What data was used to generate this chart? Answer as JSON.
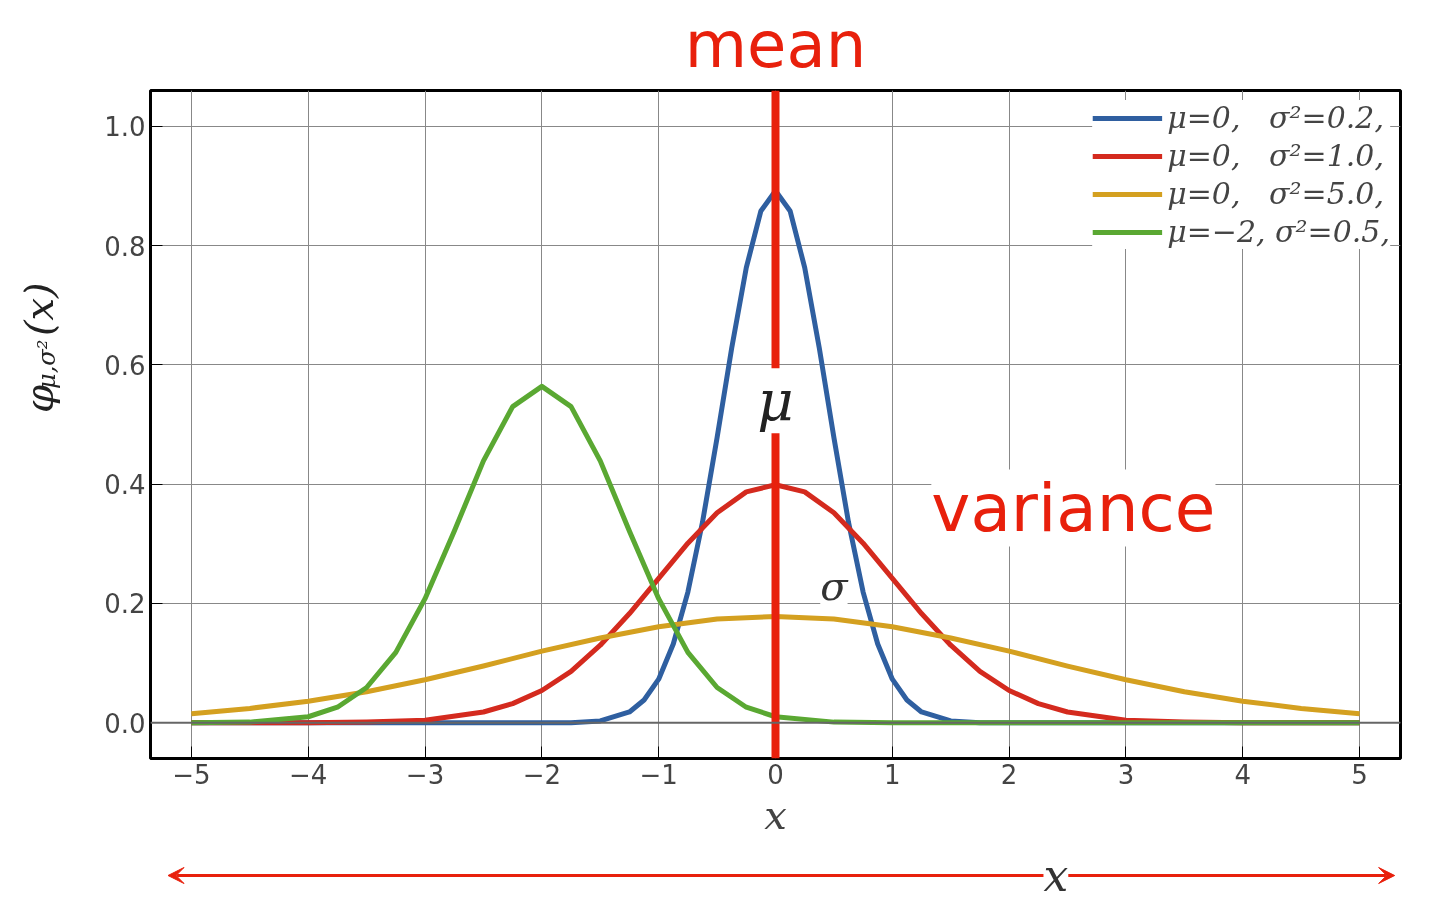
{
  "chart_data": {
    "type": "line",
    "xlabel": "x",
    "ylabel": "φ$_{μ,σ²}$(x)",
    "xlim": [
      -5.35,
      5.35
    ],
    "ylim": [
      -0.06,
      1.06
    ],
    "xticks": [
      {
        "value": -5,
        "label": "−5"
      },
      {
        "value": -4,
        "label": "−4"
      },
      {
        "value": -3,
        "label": "−3"
      },
      {
        "value": -2,
        "label": "−2"
      },
      {
        "value": -1,
        "label": "−1"
      },
      0,
      1,
      2,
      3,
      4,
      5
    ],
    "yticks": [
      {
        "value": 0,
        "label": "0.0"
      },
      0.2,
      0.4,
      0.6,
      0.8,
      {
        "value": 1,
        "label": "1.0"
      }
    ],
    "grid": true,
    "legend": "top right",
    "line_style": "solid",
    "series": [
      {
        "name": "μ=0,   σ²=0.2,",
        "color": "#2f5fa0",
        "x": [
          -5,
          -2,
          -1.75,
          -1.5,
          -1.25,
          -1.125,
          -1,
          -0.875,
          -0.75,
          -0.625,
          -0.5,
          -0.375,
          -0.25,
          -0.125,
          0,
          0.125,
          0.25,
          0.375,
          0.5,
          0.625,
          0.75,
          0.875,
          1,
          1.125,
          1.25,
          1.5,
          1.75,
          2,
          5
        ],
        "values": [
          0,
          0,
          0,
          0.003,
          0.018,
          0.038,
          0.073,
          0.132,
          0.219,
          0.336,
          0.478,
          0.628,
          0.763,
          0.858,
          0.892,
          0.858,
          0.763,
          0.628,
          0.478,
          0.336,
          0.219,
          0.132,
          0.073,
          0.038,
          0.018,
          0.003,
          0,
          0,
          0
        ]
      },
      {
        "name": "μ=0,   σ²=1.0,",
        "color": "#d42a1e",
        "x": [
          -5,
          -4,
          -3.5,
          -3,
          -2.5,
          -2.25,
          -2,
          -1.75,
          -1.5,
          -1.25,
          -1,
          -0.75,
          -0.5,
          -0.25,
          0,
          0.25,
          0.5,
          0.75,
          1,
          1.25,
          1.5,
          1.75,
          2,
          2.25,
          2.5,
          3,
          3.5,
          4,
          5
        ],
        "values": [
          0,
          0,
          0.001,
          0.004,
          0.018,
          0.032,
          0.054,
          0.086,
          0.13,
          0.183,
          0.242,
          0.301,
          0.352,
          0.387,
          0.399,
          0.387,
          0.352,
          0.301,
          0.242,
          0.183,
          0.13,
          0.086,
          0.054,
          0.032,
          0.018,
          0.004,
          0.001,
          0,
          0
        ]
      },
      {
        "name": "μ=0,   σ²=5.0,",
        "color": "#d4a020",
        "x": [
          -5,
          -4.5,
          -4,
          -3.5,
          -3,
          -2.5,
          -2,
          -1.5,
          -1,
          -0.5,
          0,
          0.5,
          1,
          1.5,
          2,
          2.5,
          3,
          3.5,
          4,
          4.5,
          5
        ],
        "values": [
          0.015,
          0.024,
          0.036,
          0.052,
          0.072,
          0.095,
          0.12,
          0.142,
          0.161,
          0.174,
          0.178,
          0.174,
          0.161,
          0.142,
          0.12,
          0.095,
          0.072,
          0.052,
          0.036,
          0.024,
          0.015
        ]
      },
      {
        "name": "μ=−2, σ²=0.5,",
        "color": "#5aa832",
        "x": [
          -5,
          -4.5,
          -4,
          -3.75,
          -3.5,
          -3.25,
          -3,
          -2.75,
          -2.5,
          -2.25,
          -2,
          -1.75,
          -1.5,
          -1.25,
          -1,
          -0.75,
          -0.5,
          -0.25,
          0,
          0.5,
          1,
          5
        ],
        "values": [
          0,
          0.001,
          0.01,
          0.026,
          0.059,
          0.118,
          0.208,
          0.321,
          0.439,
          0.53,
          0.564,
          0.53,
          0.439,
          0.321,
          0.208,
          0.118,
          0.059,
          0.026,
          0.01,
          0.001,
          0,
          0
        ]
      }
    ],
    "ref_lines": [
      {
        "axis": "x",
        "value": 0,
        "label": "mean",
        "color": "#e8200c"
      },
      {
        "axis": "y",
        "value": 0,
        "color": "#666666"
      }
    ],
    "annotations": [
      "μ",
      "σ",
      "variance",
      "x"
    ]
  }
}
